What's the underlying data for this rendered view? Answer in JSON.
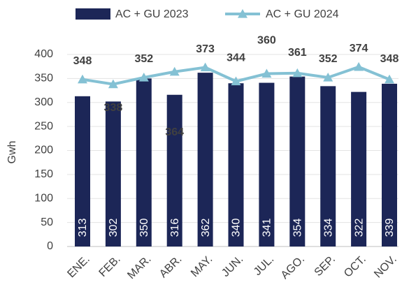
{
  "chart_data": {
    "type": "bar+line",
    "y_label": "Gwh",
    "categories": [
      "ENE.",
      "FEB.",
      "MAR.",
      "ABR.",
      "MAY.",
      "JUN.",
      "JUL.",
      "AGO.",
      "SEP.",
      "OCT.",
      "NOV."
    ],
    "series": [
      {
        "name": "AC + GU 2023",
        "type": "bar",
        "color": "#1c2657",
        "values": [
          313,
          302,
          350,
          316,
          362,
          340,
          341,
          354,
          334,
          322,
          339
        ]
      },
      {
        "name": "AC + GU 2024",
        "type": "line",
        "color": "#84c1d4",
        "values": [
          348,
          338,
          352,
          364,
          373,
          344,
          360,
          361,
          352,
          374,
          348
        ]
      }
    ],
    "ylim": [
      0,
      400
    ],
    "yticks": [
      0,
      50,
      100,
      150,
      200,
      250,
      300,
      350,
      400
    ],
    "grid": true,
    "legend": "top"
  }
}
